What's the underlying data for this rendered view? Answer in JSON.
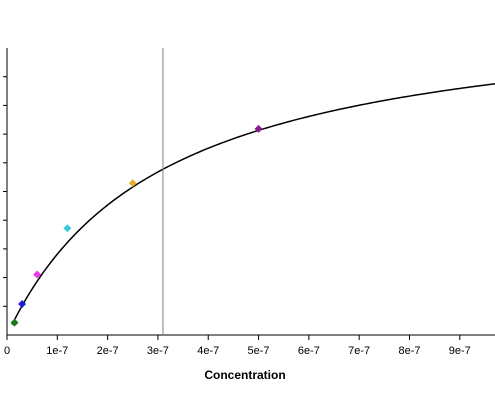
{
  "chart_data": {
    "type": "scatter",
    "title": "",
    "xlabel": "Concentration",
    "ylabel": "",
    "xlim": [
      0,
      9.7e-07
    ],
    "ylim": [
      0,
      1.0
    ],
    "grid": false,
    "x_ticks": [
      {
        "value": 0,
        "label": "0"
      },
      {
        "value": 1e-07,
        "label": "1e-7"
      },
      {
        "value": 2e-07,
        "label": "2e-7"
      },
      {
        "value": 3e-07,
        "label": "3e-7"
      },
      {
        "value": 4e-07,
        "label": "4e-7"
      },
      {
        "value": 5e-07,
        "label": "5e-7"
      },
      {
        "value": 6e-07,
        "label": "6e-7"
      },
      {
        "value": 7e-07,
        "label": "7e-7"
      },
      {
        "value": 8e-07,
        "label": "8e-7"
      },
      {
        "value": 9e-07,
        "label": "9e-7"
      }
    ],
    "y_ticks": [
      0.1,
      0.2,
      0.3,
      0.4,
      0.5,
      0.6,
      0.7,
      0.8,
      0.9
    ],
    "points": [
      {
        "x": 1.5e-08,
        "y": 0.043,
        "color": "#1a7a1a"
      },
      {
        "x": 3e-08,
        "y": 0.108,
        "color": "#1f1fd6"
      },
      {
        "x": 6e-08,
        "y": 0.211,
        "color": "#e83ae8"
      },
      {
        "x": 1.2e-07,
        "y": 0.372,
        "color": "#3cc8d8"
      },
      {
        "x": 2.5e-07,
        "y": 0.529,
        "color": "#e8b030"
      },
      {
        "x": 5e-07,
        "y": 0.718,
        "color": "#8a1a8a"
      }
    ],
    "fit_curve": {
      "model": "hyperbolic",
      "bmax": 1.155,
      "kd": 3.1e-07,
      "x_start": 1e-08,
      "x_end": 9.7e-07,
      "color": "#000000"
    },
    "vertical_marker": {
      "x": 3.1e-07,
      "color": "#808080"
    }
  }
}
